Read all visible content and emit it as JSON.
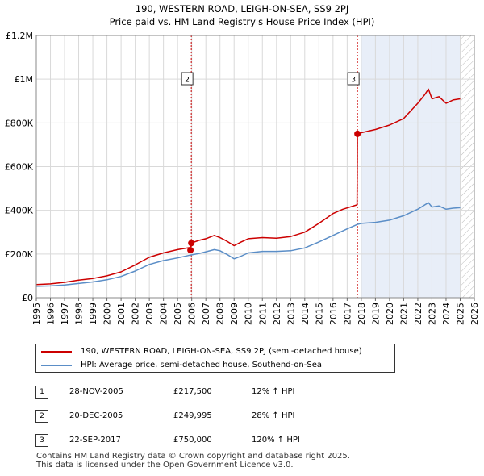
{
  "chart_data": {
    "type": "line",
    "title": "190, WESTERN ROAD, LEIGH-ON-SEA, SS9 2PJ",
    "subtitle": "Price paid vs. HM Land Registry's House Price Index (HPI)",
    "xlim": [
      1995,
      2026
    ],
    "ylim": [
      0,
      1200000
    ],
    "x_ticks": [
      1995,
      1996,
      1997,
      1998,
      1999,
      2000,
      2001,
      2002,
      2003,
      2004,
      2005,
      2006,
      2007,
      2008,
      2009,
      2010,
      2011,
      2012,
      2013,
      2014,
      2015,
      2016,
      2017,
      2018,
      2019,
      2020,
      2021,
      2022,
      2023,
      2024,
      2025,
      2026
    ],
    "y_ticks": [
      {
        "value": 0,
        "label": "£0"
      },
      {
        "value": 200000,
        "label": "£200K"
      },
      {
        "value": 400000,
        "label": "£400K"
      },
      {
        "value": 600000,
        "label": "£600K"
      },
      {
        "value": 800000,
        "label": "£800K"
      },
      {
        "value": 1000000,
        "label": "£1M"
      },
      {
        "value": 1200000,
        "label": "£1.2M"
      }
    ],
    "grid": true,
    "colors": {
      "property": "#cc0000",
      "hpi": "#5b8ec7",
      "shade": "#e8eef8",
      "vline": "#cc0000"
    },
    "series": [
      {
        "name": "190, WESTERN ROAD, LEIGH-ON-SEA, SS9 2PJ (semi-detached house)",
        "key": "property",
        "x": [
          1995,
          1996,
          1997,
          1998,
          1999,
          2000,
          2001,
          2002,
          2003,
          2004,
          2005,
          2005.9,
          2005.97,
          2006.5,
          2007,
          2007.6,
          2008,
          2008.5,
          2009,
          2009.5,
          2010,
          2011,
          2012,
          2013,
          2014,
          2015,
          2016,
          2016.7,
          2017.7,
          2017.73,
          2018,
          2019,
          2020,
          2021,
          2022,
          2022.5,
          2022.75,
          2023,
          2023.5,
          2024,
          2024.5,
          2025
        ],
        "y": [
          60000,
          63000,
          70000,
          80000,
          88000,
          100000,
          118000,
          150000,
          185000,
          205000,
          220000,
          230000,
          250000,
          262000,
          270000,
          285000,
          275000,
          258000,
          238000,
          255000,
          270000,
          275000,
          272000,
          280000,
          300000,
          340000,
          385000,
          405000,
          425000,
          750000,
          755000,
          770000,
          790000,
          820000,
          890000,
          930000,
          955000,
          910000,
          920000,
          890000,
          905000,
          910000
        ]
      },
      {
        "name": "HPI: Average price, semi-detached house, Southend-on-Sea",
        "key": "hpi",
        "x": [
          1995,
          1996,
          1997,
          1998,
          1999,
          2000,
          2001,
          2002,
          2003,
          2004,
          2005,
          2005.9,
          2006.5,
          2007,
          2007.6,
          2008,
          2008.5,
          2009,
          2009.5,
          2010,
          2011,
          2012,
          2013,
          2014,
          2015,
          2016,
          2017,
          2017.7,
          2018,
          2019,
          2020,
          2021,
          2022,
          2022.5,
          2022.75,
          2023,
          2023.5,
          2024,
          2024.5,
          2025
        ],
        "y": [
          52000,
          54000,
          58000,
          65000,
          72000,
          82000,
          97000,
          122000,
          152000,
          170000,
          182000,
          195000,
          202000,
          210000,
          220000,
          215000,
          198000,
          178000,
          190000,
          205000,
          212000,
          212000,
          215000,
          228000,
          255000,
          285000,
          315000,
          335000,
          340000,
          345000,
          355000,
          375000,
          405000,
          425000,
          435000,
          415000,
          420000,
          405000,
          410000,
          412000
        ]
      }
    ],
    "sales": [
      {
        "num": "1",
        "x": 2005.91,
        "y": 217500
      },
      {
        "num": "2",
        "x": 2005.97,
        "y": 249995
      },
      {
        "num": "3",
        "x": 2017.73,
        "y": 750000
      }
    ],
    "vlines": [
      {
        "num": "2",
        "x": 2005.97
      },
      {
        "num": "3",
        "x": 2017.73
      }
    ],
    "shade": [
      2018.0,
      2025.0
    ],
    "hatch_from": 2025.0
  },
  "legend": {
    "property_label": "190, WESTERN ROAD, LEIGH-ON-SEA, SS9 2PJ (semi-detached house)",
    "hpi_label": "HPI: Average price, semi-detached house, Southend-on-Sea"
  },
  "transactions": [
    {
      "num": "1",
      "date": "28-NOV-2005",
      "price": "£217,500",
      "hpi": "12% ↑ HPI"
    },
    {
      "num": "2",
      "date": "20-DEC-2005",
      "price": "£249,995",
      "hpi": "28% ↑ HPI"
    },
    {
      "num": "3",
      "date": "22-SEP-2017",
      "price": "£750,000",
      "hpi": "120% ↑ HPI"
    }
  ],
  "footer": {
    "line1": "Contains HM Land Registry data © Crown copyright and database right 2025.",
    "line2": "This data is licensed under the Open Government Licence v3.0."
  }
}
